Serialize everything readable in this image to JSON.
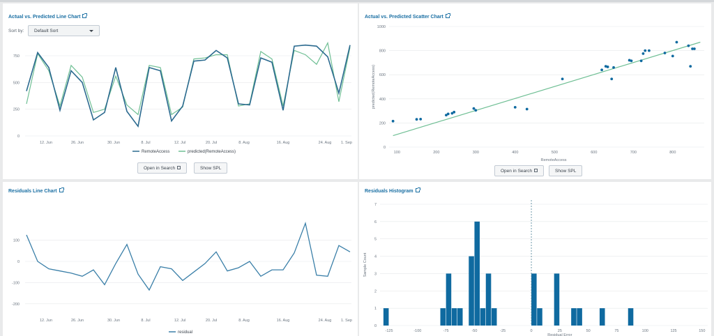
{
  "panels": {
    "line": {
      "title": "Actual vs. Predicted Line Chart",
      "sort_label": "Sort by:",
      "sort_value": "Default Sort",
      "btn_search": "Open in Search",
      "btn_spl": "Show SPL"
    },
    "scatter": {
      "title": "Actual vs. Predicted Scatter Chart",
      "btn_search": "Open in Search",
      "btn_spl": "Show SPL"
    },
    "residline": {
      "title": "Residuals Line Chart"
    },
    "histogram": {
      "title": "Residuals Histogram"
    }
  },
  "colors": {
    "actual": "#2b6a8f",
    "predicted": "#6fbf94",
    "residual": "#3a7fa8",
    "bar": "#0f6aa0",
    "link": "#1a6fa3"
  },
  "chart_data": [
    {
      "type": "line",
      "x_ticks": [
        "12. Jun",
        "26. Jun",
        "30. Jun",
        "8. Jul",
        "12. Jul",
        "20. Jul",
        "8. Aug",
        "16. Aug",
        "24. Aug",
        "1. Sep"
      ],
      "ylim": [
        0,
        900
      ],
      "y_ticks": [
        0,
        250,
        500,
        750
      ],
      "series": [
        {
          "name": "RemoteAccess",
          "values": [
            420,
            780,
            640,
            240,
            610,
            500,
            150,
            220,
            640,
            230,
            90,
            640,
            610,
            140,
            280,
            700,
            710,
            800,
            730,
            300,
            290,
            730,
            690,
            240,
            840,
            850,
            840,
            740,
            400,
            850
          ]
        },
        {
          "name": "predicted(RemoteAccess)",
          "values": [
            300,
            770,
            610,
            280,
            660,
            550,
            220,
            250,
            560,
            290,
            200,
            660,
            640,
            200,
            270,
            720,
            730,
            760,
            760,
            280,
            300,
            790,
            720,
            280,
            800,
            760,
            670,
            870,
            320,
            830
          ]
        }
      ]
    },
    {
      "type": "scatter",
      "xlabel": "RemoteAccess",
      "ylabel": "predicted(RemoteAccess)",
      "xlim": [
        80,
        880
      ],
      "ylim": [
        0,
        1000
      ],
      "x_ticks": [
        100,
        200,
        300,
        400,
        500,
        600,
        700,
        800
      ],
      "y_ticks": [
        0,
        200,
        400,
        600,
        800,
        1000
      ],
      "points": [
        [
          90,
          215
        ],
        [
          150,
          230
        ],
        [
          160,
          232
        ],
        [
          225,
          265
        ],
        [
          230,
          275
        ],
        [
          240,
          280
        ],
        [
          245,
          290
        ],
        [
          295,
          320
        ],
        [
          300,
          305
        ],
        [
          400,
          330
        ],
        [
          430,
          315
        ],
        [
          520,
          565
        ],
        [
          620,
          640
        ],
        [
          630,
          670
        ],
        [
          635,
          665
        ],
        [
          645,
          565
        ],
        [
          650,
          660
        ],
        [
          690,
          720
        ],
        [
          695,
          715
        ],
        [
          720,
          715
        ],
        [
          725,
          775
        ],
        [
          730,
          800
        ],
        [
          740,
          800
        ],
        [
          780,
          780
        ],
        [
          800,
          755
        ],
        [
          810,
          870
        ],
        [
          840,
          840
        ],
        [
          845,
          670
        ],
        [
          850,
          815
        ],
        [
          855,
          815
        ]
      ],
      "fit_line": [
        [
          90,
          95
        ],
        [
          870,
          870
        ]
      ]
    },
    {
      "type": "line",
      "x_ticks": [
        "12. Jun",
        "26. Jun",
        "30. Jun",
        "8. Jul",
        "12. Jul",
        "20. Jul",
        "8. Aug",
        "16. Aug",
        "24. Aug",
        "1. Sep"
      ],
      "ylim": [
        -250,
        250
      ],
      "y_ticks": [
        -200,
        -100,
        0,
        100
      ],
      "legend": [
        "residual"
      ],
      "series": [
        {
          "name": "residual",
          "values": [
            125,
            0,
            -35,
            -45,
            -55,
            -70,
            -40,
            -110,
            -10,
            80,
            -60,
            -135,
            -25,
            -35,
            -90,
            -50,
            -10,
            45,
            -45,
            -30,
            0,
            -70,
            -40,
            -40,
            40,
            180,
            -65,
            -70,
            75,
            45
          ]
        }
      ]
    },
    {
      "type": "bar",
      "xlabel": "Residual Error",
      "ylabel": "Sample Count",
      "x_ticks": [
        -125,
        -100,
        -75,
        -50,
        -25,
        0,
        25,
        50,
        75,
        100,
        125,
        150
      ],
      "y_ticks": [
        0,
        1,
        2,
        3,
        4,
        5,
        6,
        7
      ],
      "ylim": [
        0,
        7
      ],
      "bins": [
        {
          "start": -130,
          "end": -125,
          "count": 1
        },
        {
          "start": -80,
          "end": -75,
          "count": 1
        },
        {
          "start": -75,
          "end": -70,
          "count": 3
        },
        {
          "start": -70,
          "end": -65,
          "count": 1
        },
        {
          "start": -65,
          "end": -60,
          "count": 1
        },
        {
          "start": -55,
          "end": -50,
          "count": 4
        },
        {
          "start": -50,
          "end": -45,
          "count": 6
        },
        {
          "start": -45,
          "end": -40,
          "count": 1
        },
        {
          "start": -40,
          "end": -35,
          "count": 3
        },
        {
          "start": -35,
          "end": -30,
          "count": 1
        },
        {
          "start": 0,
          "end": 5,
          "count": 3
        },
        {
          "start": 5,
          "end": 10,
          "count": 1
        },
        {
          "start": 20,
          "end": 25,
          "count": 3
        },
        {
          "start": 35,
          "end": 40,
          "count": 1
        },
        {
          "start": 40,
          "end": 45,
          "count": 1
        },
        {
          "start": 60,
          "end": 65,
          "count": 1
        },
        {
          "start": 85,
          "end": 90,
          "count": 1
        }
      ]
    }
  ]
}
